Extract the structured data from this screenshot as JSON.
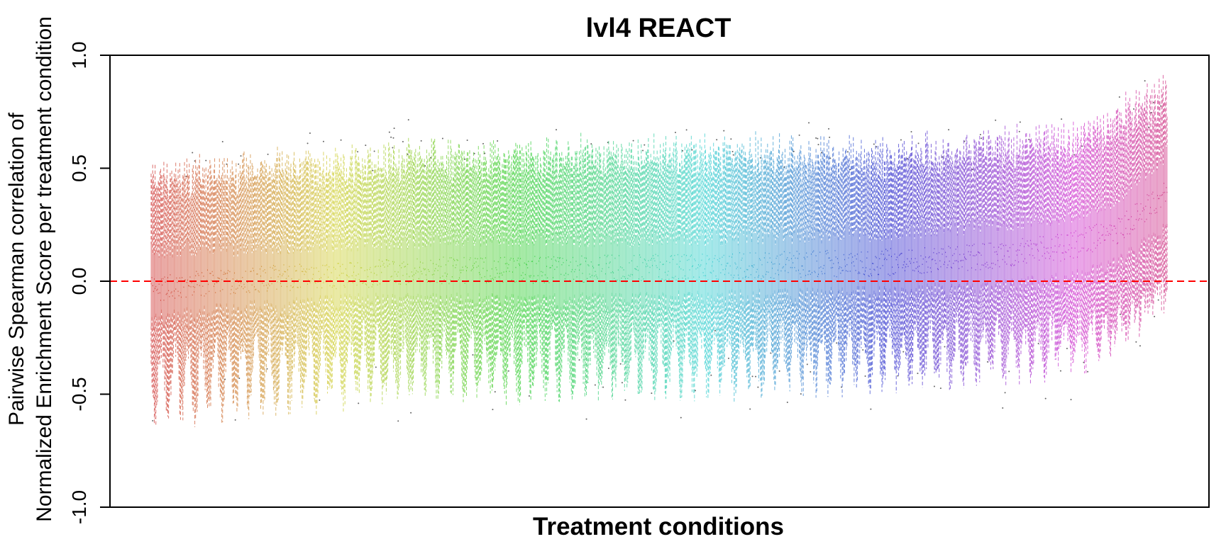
{
  "chart_data": {
    "type": "boxplot",
    "title": "lvl4 REACT",
    "xlabel": "Treatment conditions",
    "ylabel": [
      "Pairwise Spearman correlation of",
      "Normalized Enrichment Score per treatment condition"
    ],
    "ylim": [
      -1.0,
      1.0
    ],
    "yticks": [
      -1.0,
      -0.5,
      0.0,
      0.5,
      1.0
    ],
    "ytick_labels": [
      "-1.0",
      "-0.5",
      "0.0",
      "0.5",
      "1.0"
    ],
    "reference_line": {
      "y": 0.0,
      "color": "#ff0000",
      "style": "dashed"
    },
    "series_count": 1280,
    "color_scheme": "rainbow-hue",
    "trend": {
      "x_frac": [
        0.0,
        0.1,
        0.2,
        0.3,
        0.4,
        0.5,
        0.6,
        0.7,
        0.8,
        0.9,
        0.95,
        1.0
      ],
      "median": [
        -0.03,
        0.01,
        0.03,
        0.05,
        0.05,
        0.06,
        0.07,
        0.08,
        0.1,
        0.15,
        0.22,
        0.4
      ],
      "q1": [
        -0.18,
        -0.13,
        -0.1,
        -0.1,
        -0.1,
        -0.09,
        -0.08,
        -0.07,
        -0.05,
        -0.01,
        0.06,
        0.22
      ],
      "q3": [
        0.15,
        0.16,
        0.18,
        0.2,
        0.2,
        0.2,
        0.21,
        0.22,
        0.25,
        0.3,
        0.37,
        0.58
      ],
      "whisker_low": [
        -0.45,
        -0.4,
        -0.37,
        -0.36,
        -0.36,
        -0.35,
        -0.34,
        -0.33,
        -0.32,
        -0.28,
        -0.2,
        -0.05
      ],
      "whisker_high": [
        0.45,
        0.5,
        0.52,
        0.55,
        0.56,
        0.56,
        0.56,
        0.56,
        0.58,
        0.62,
        0.7,
        0.85
      ]
    }
  }
}
